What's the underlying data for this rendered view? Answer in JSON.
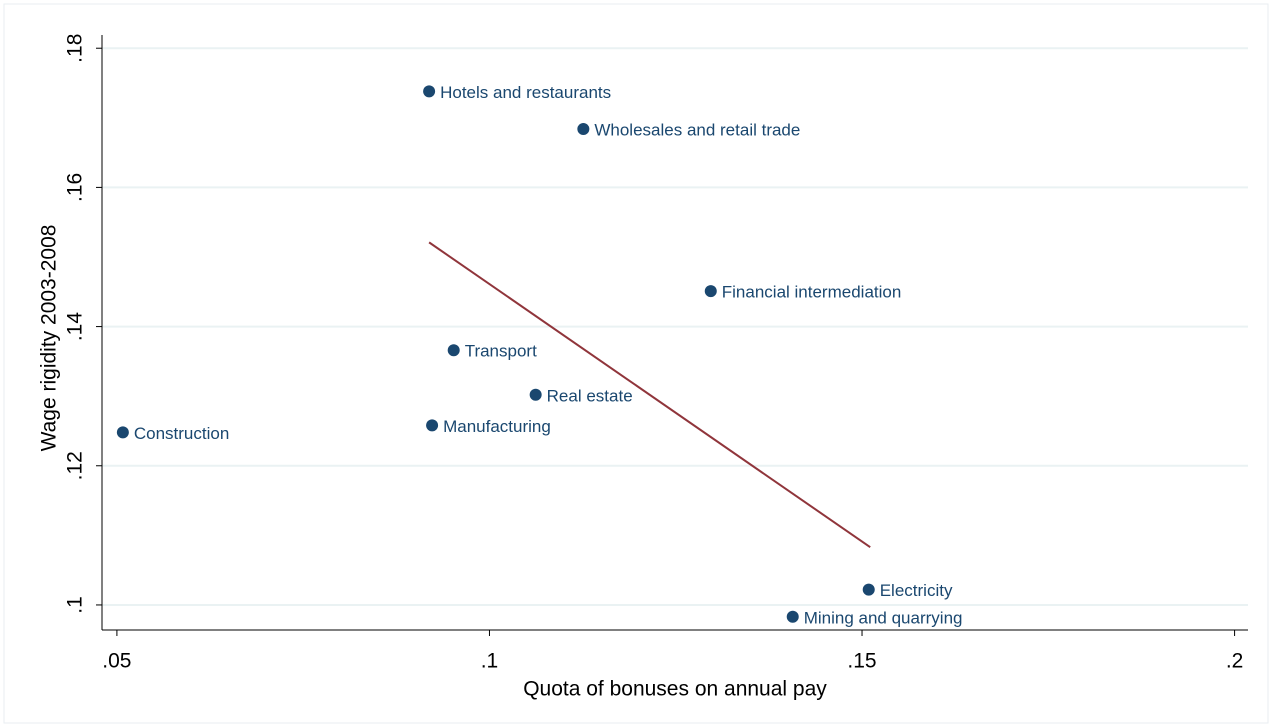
{
  "chart_data": {
    "type": "scatter",
    "x_label": "Quota of bonuses on annual pay",
    "y_label": "Wage rigidity 2003-2008",
    "x": [
      0.0919,
      0.1126,
      0.1297,
      0.0952,
      0.1062,
      0.0923,
      0.0508,
      0.1509,
      0.1407
    ],
    "values": [
      0.1738,
      0.1684,
      0.1451,
      0.1366,
      0.1302,
      0.1258,
      0.1248,
      0.1022,
      0.0983
    ],
    "labels": [
      "Hotels and restaurants",
      "Wholesales and retail trade",
      "Financial intermediation",
      "Transport",
      "Real estate",
      "Manufacturing",
      "Construction",
      "Electricity",
      "Mining and quarrying"
    ],
    "color": "#1a476f",
    "fit": {
      "x": [
        0.0919,
        0.1511
      ],
      "y": [
        0.1521,
        0.1083
      ],
      "color": "#90353b"
    },
    "xlim": [
      0.048,
      0.2018
    ],
    "ylim": [
      0.0964,
      0.1819
    ],
    "xticks": [
      {
        "value": 0.05,
        "label": ".05"
      },
      {
        "value": 0.1,
        "label": ".1"
      },
      {
        "value": 0.15,
        "label": ".15"
      },
      {
        "value": 0.2,
        "label": ".2"
      }
    ],
    "yticks": [
      {
        "value": 0.1,
        "label": ".1"
      },
      {
        "value": 0.12,
        "label": ".12"
      },
      {
        "value": 0.14,
        "label": ".14"
      },
      {
        "value": 0.16,
        "label": ".16"
      },
      {
        "value": 0.18,
        "label": ".18"
      }
    ],
    "grid": true
  }
}
